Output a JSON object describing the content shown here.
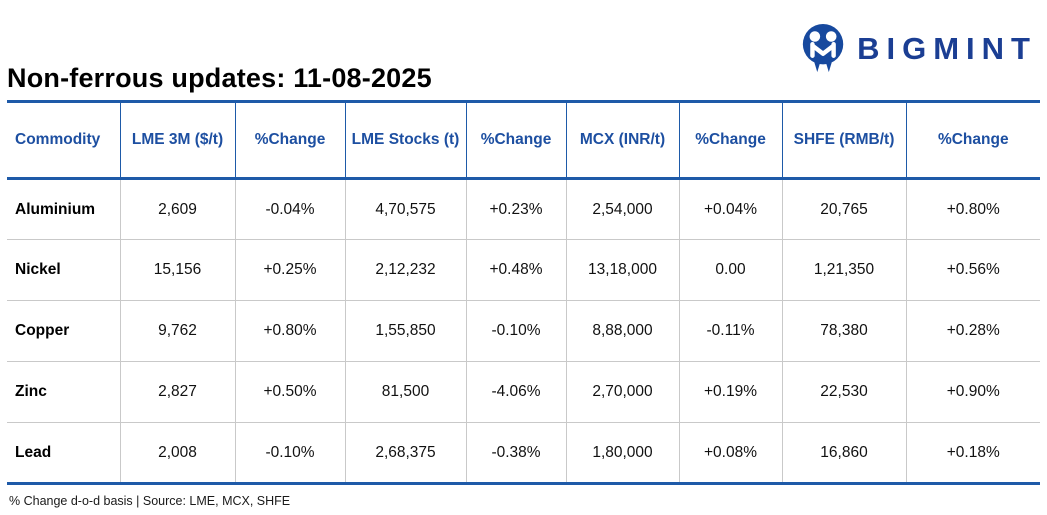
{
  "brand": {
    "name": "BIGMINT",
    "logo_icon": "bigmint-m-circle",
    "mark_color": "#17499e",
    "wordmark_color": "#1b3e93"
  },
  "title": "Non-ferrous updates: 11-08-2025",
  "table": {
    "columns": [
      {
        "label": "Commodity"
      },
      {
        "label": "LME 3M ($/t)"
      },
      {
        "label": "%Change"
      },
      {
        "label": "LME Stocks (t)"
      },
      {
        "label": "%Change"
      },
      {
        "label": "MCX (INR/t)"
      },
      {
        "label": "%Change"
      },
      {
        "label": "SHFE (RMB/t)"
      },
      {
        "label": "%Change"
      }
    ],
    "rows": [
      {
        "commodity": "Aluminium",
        "cells": [
          {
            "text": "2,609",
            "color": "black"
          },
          {
            "text": "-0.04%",
            "color": "green"
          },
          {
            "text": "4,70,575",
            "color": "black"
          },
          {
            "text": "+0.23%",
            "color": "green"
          },
          {
            "text": "2,54,000",
            "color": "black"
          },
          {
            "text": "+0.04%",
            "color": "green"
          },
          {
            "text": "20,765",
            "color": "black"
          },
          {
            "text": "+0.80%",
            "color": "green"
          }
        ]
      },
      {
        "commodity": "Nickel",
        "cells": [
          {
            "text": "15,156",
            "color": "black"
          },
          {
            "text": "+0.25%",
            "color": "red"
          },
          {
            "text": "2,12,232",
            "color": "black"
          },
          {
            "text": "+0.48%",
            "color": "green"
          },
          {
            "text": "13,18,000",
            "color": "black"
          },
          {
            "text": "0.00",
            "color": "black"
          },
          {
            "text": "1,21,350",
            "color": "black"
          },
          {
            "text": "+0.56%",
            "color": "green"
          }
        ]
      },
      {
        "commodity": "Copper",
        "cells": [
          {
            "text": "9,762",
            "color": "black"
          },
          {
            "text": "+0.80%",
            "color": "green"
          },
          {
            "text": "1,55,850",
            "color": "black"
          },
          {
            "text": "-0.10%",
            "color": "red"
          },
          {
            "text": "8,88,000",
            "color": "black"
          },
          {
            "text": "-0.11%",
            "color": "red"
          },
          {
            "text": "78,380",
            "color": "black"
          },
          {
            "text": "+0.28%",
            "color": "green"
          }
        ]
      },
      {
        "commodity": "Zinc",
        "cells": [
          {
            "text": "2,827",
            "color": "black"
          },
          {
            "text": "+0.50%",
            "color": "green"
          },
          {
            "text": "81,500",
            "color": "black"
          },
          {
            "text": "-4.06%",
            "color": "red"
          },
          {
            "text": "2,70,000",
            "color": "black"
          },
          {
            "text": "+0.19%",
            "color": "green"
          },
          {
            "text": "22,530",
            "color": "black"
          },
          {
            "text": "+0.90%",
            "color": "green"
          }
        ]
      },
      {
        "commodity": "Lead",
        "cells": [
          {
            "text": "2,008",
            "color": "black"
          },
          {
            "text": "-0.10%",
            "color": "red"
          },
          {
            "text": "2,68,375",
            "color": "black"
          },
          {
            "text": "-0.38%",
            "color": "red"
          },
          {
            "text": "1,80,000",
            "color": "black"
          },
          {
            "text": "+0.08%",
            "color": "green"
          },
          {
            "text": "16,860",
            "color": "black"
          },
          {
            "text": "+0.18%",
            "color": "green"
          }
        ]
      }
    ]
  },
  "footer": "% Change d-o-d basis | Source: LME, MCX, SHFE",
  "colors": {
    "positive": "#0cad5d",
    "negative": "#fe0000",
    "header_text": "#1d4fa1",
    "table_border": "#1e5aa8",
    "row_separator": "#c9c9c9"
  }
}
